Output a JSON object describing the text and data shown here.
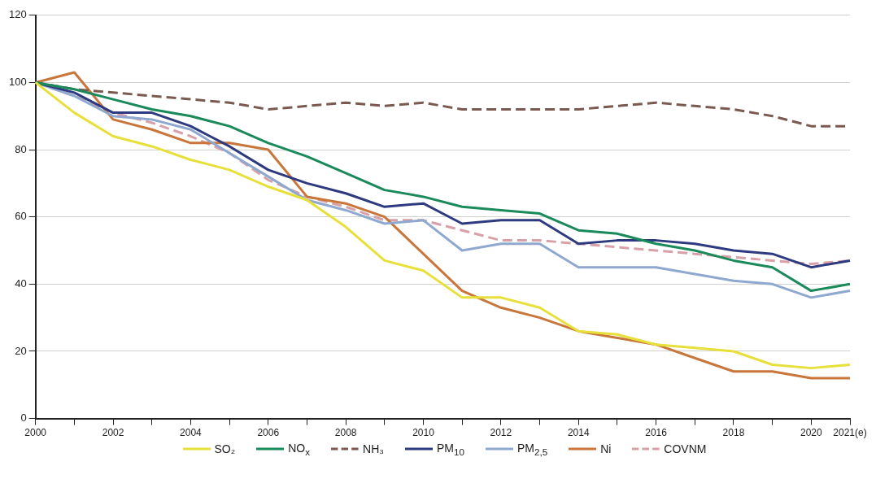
{
  "chart_data": {
    "type": "line",
    "categories": [
      "2000",
      null,
      "2002",
      null,
      "2004",
      null,
      "2006",
      null,
      "2008",
      null,
      "2010",
      null,
      "2012",
      null,
      "2014",
      null,
      "2016",
      null,
      "2018",
      null,
      "2020",
      "2021(e)"
    ],
    "ylim": [
      0,
      120
    ],
    "yticks": [
      0,
      20,
      40,
      60,
      80,
      100,
      120
    ],
    "grid": "y",
    "legend": "bottom",
    "series": [
      {
        "name": "SO₂",
        "color": "#e8e03a",
        "line_style": "solid",
        "values": [
          100,
          91,
          84,
          81,
          77,
          74,
          69,
          65,
          57,
          47,
          44,
          36,
          36,
          33,
          26,
          25,
          22,
          21,
          20,
          16,
          15,
          16
        ]
      },
      {
        "name": "NO$_{x}$",
        "color": "#1a8a5a",
        "line_style": "solid",
        "values": [
          100,
          98,
          95,
          92,
          90,
          87,
          82,
          78,
          73,
          68,
          66,
          63,
          62,
          61,
          56,
          55,
          52,
          50,
          47,
          45,
          38,
          40
        ]
      },
      {
        "name": "NH₃",
        "color": "#7a5a50",
        "line_style": "dashed",
        "values": [
          100,
          98,
          97,
          96,
          95,
          94,
          92,
          93,
          94,
          93,
          94,
          92,
          92,
          92,
          92,
          93,
          94,
          93,
          92,
          90,
          87,
          87
        ]
      },
      {
        "name": "PM$_{10}$",
        "color": "#2e3a80",
        "line_style": "solid",
        "values": [
          100,
          97,
          91,
          91,
          87,
          81,
          74,
          70,
          67,
          63,
          64,
          58,
          59,
          59,
          52,
          53,
          53,
          52,
          50,
          49,
          45,
          47
        ]
      },
      {
        "name": "PM$_{2,5}$",
        "color": "#8ea8d0",
        "line_style": "solid",
        "values": [
          100,
          96,
          90,
          89,
          86,
          79,
          72,
          65,
          62,
          58,
          59,
          50,
          52,
          52,
          45,
          45,
          45,
          43,
          41,
          40,
          36,
          38
        ]
      },
      {
        "name": "Ni",
        "color": "#c8763a",
        "line_style": "solid",
        "values": [
          100,
          103,
          89,
          86,
          82,
          82,
          80,
          66,
          64,
          60,
          49,
          38,
          33,
          30,
          26,
          24,
          22,
          18,
          14,
          14,
          12,
          12
        ]
      },
      {
        "name": "COVNM",
        "color": "#d8a0a8",
        "line_style": "dashed",
        "values": [
          100,
          96,
          91,
          88,
          84,
          79,
          71,
          66,
          63,
          59,
          59,
          56,
          53,
          53,
          52,
          51,
          50,
          49,
          48,
          47,
          46,
          47
        ]
      }
    ]
  }
}
